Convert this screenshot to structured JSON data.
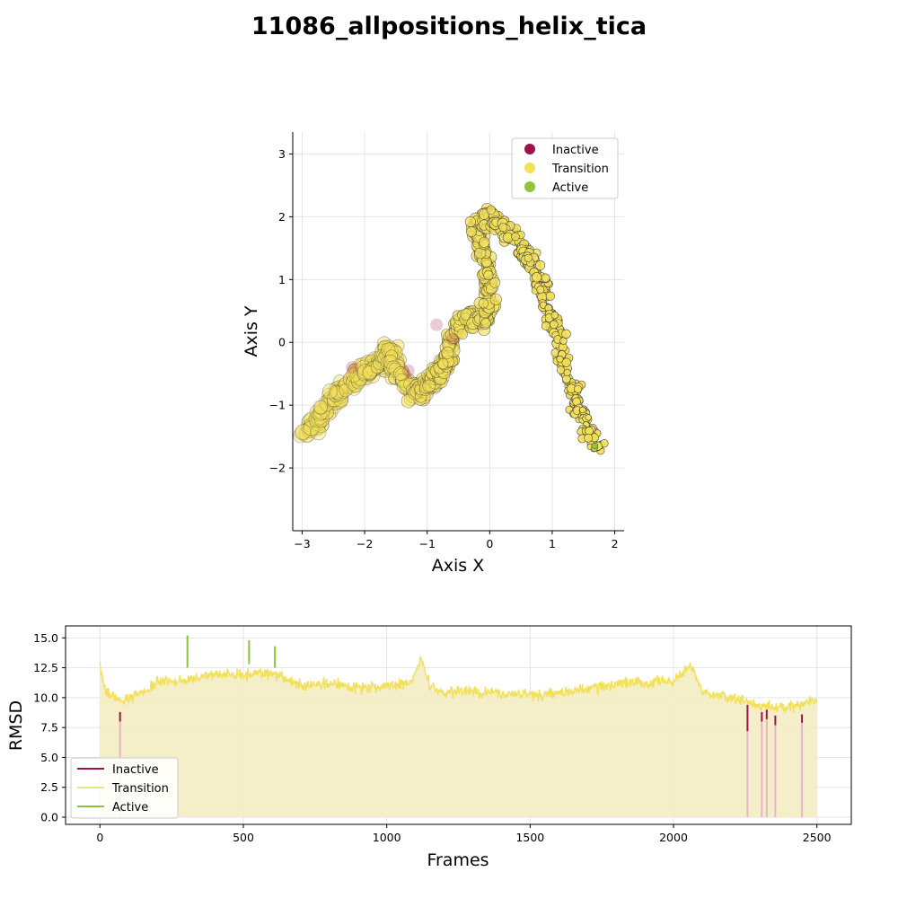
{
  "title": "11086_allpositions_helix_tica",
  "colors": {
    "inactive": "#a01247",
    "transition": "#f3e05a",
    "active": "#8cc43c",
    "transition_fill": "#f3eec5",
    "inactive_fill": "#e8b4c6",
    "grid": "#e5e5e5"
  },
  "chart_data": [
    {
      "type": "scatter",
      "title": "",
      "xlabel": "Axis X",
      "ylabel": "Axis Y",
      "xlim": [
        -3.15,
        2.15
      ],
      "ylim": [
        -3.0,
        3.35
      ],
      "xticks": [
        -3,
        -2,
        -1,
        0,
        1,
        2
      ],
      "yticks": [
        -2,
        -1,
        0,
        1,
        2,
        3
      ],
      "grid": true,
      "legend_position": "top-right",
      "legend": [
        {
          "label": "Inactive",
          "color": "#a01247"
        },
        {
          "label": "Transition",
          "color": "#f3e05a"
        },
        {
          "label": "Active",
          "color": "#8cc43c"
        }
      ],
      "series": [
        {
          "name": "Transition",
          "path_points": [
            [
              -2.95,
              -1.45
            ],
            [
              -2.7,
              -1.2
            ],
            [
              -2.45,
              -0.85
            ],
            [
              -2.2,
              -0.6
            ],
            [
              -1.95,
              -0.45
            ],
            [
              -1.7,
              -0.3
            ],
            [
              -1.6,
              -0.1
            ],
            [
              -1.45,
              -0.55
            ],
            [
              -1.2,
              -0.8
            ],
            [
              -1.0,
              -0.7
            ],
            [
              -0.85,
              -0.5
            ],
            [
              -0.7,
              -0.35
            ],
            [
              -0.6,
              0.1
            ],
            [
              -0.4,
              0.45
            ],
            [
              -0.2,
              0.3
            ],
            [
              0.0,
              0.5
            ],
            [
              -0.05,
              1.0
            ],
            [
              -0.1,
              1.5
            ],
            [
              -0.2,
              1.8
            ],
            [
              0.0,
              2.05
            ],
            [
              0.2,
              1.85
            ],
            [
              0.4,
              1.65
            ],
            [
              0.6,
              1.35
            ],
            [
              0.75,
              1.1
            ],
            [
              0.95,
              0.5
            ],
            [
              1.1,
              0.1
            ],
            [
              1.25,
              -0.5
            ],
            [
              1.4,
              -1.0
            ],
            [
              1.55,
              -1.35
            ],
            [
              1.7,
              -1.75
            ]
          ]
        },
        {
          "name": "Inactive",
          "points": [
            [
              -2.2,
              -0.4
            ],
            [
              -1.3,
              -0.45
            ],
            [
              -0.85,
              0.28
            ],
            [
              -0.6,
              0.05
            ]
          ]
        },
        {
          "name": "Active",
          "points": [
            [
              1.68,
              -1.65
            ]
          ]
        }
      ]
    },
    {
      "type": "area",
      "title": "",
      "xlabel": "Frames",
      "ylabel": "RMSD",
      "xlim": [
        -120,
        2620
      ],
      "ylim": [
        -0.6,
        16
      ],
      "xticks": [
        0,
        500,
        1000,
        1500,
        2000,
        2500
      ],
      "yticks": [
        0.0,
        2.5,
        5.0,
        7.5,
        10.0,
        12.5,
        15.0
      ],
      "grid": true,
      "legend_position": "bottom-left",
      "legend": [
        {
          "label": "Inactive",
          "color": "#a01247"
        },
        {
          "label": "Transition",
          "color": "#e6ea7a"
        },
        {
          "label": "Active",
          "color": "#8cc43c"
        }
      ],
      "x_range": [
        0,
        2500
      ],
      "baseline_profile": [
        [
          0,
          12.5
        ],
        [
          20,
          10.5
        ],
        [
          70,
          9.8
        ],
        [
          100,
          10.0
        ],
        [
          150,
          10.5
        ],
        [
          200,
          11.3
        ],
        [
          300,
          11.5
        ],
        [
          400,
          12.0
        ],
        [
          500,
          11.9
        ],
        [
          600,
          12.0
        ],
        [
          700,
          11.0
        ],
        [
          800,
          11.2
        ],
        [
          900,
          10.9
        ],
        [
          1000,
          11.0
        ],
        [
          1080,
          11.2
        ],
        [
          1120,
          13.2
        ],
        [
          1150,
          11.0
        ],
        [
          1200,
          10.5
        ],
        [
          1300,
          10.5
        ],
        [
          1400,
          10.3
        ],
        [
          1500,
          10.2
        ],
        [
          1600,
          10.5
        ],
        [
          1700,
          10.7
        ],
        [
          1800,
          11.2
        ],
        [
          1900,
          11.3
        ],
        [
          2000,
          11.4
        ],
        [
          2060,
          12.6
        ],
        [
          2100,
          10.5
        ],
        [
          2200,
          10.0
        ],
        [
          2250,
          9.8
        ],
        [
          2300,
          9.3
        ],
        [
          2400,
          9.2
        ],
        [
          2500,
          9.8
        ]
      ],
      "active_spikes": [
        {
          "frame": 305,
          "low": 12.5,
          "high": 15.2
        },
        {
          "frame": 520,
          "low": 12.8,
          "high": 14.8
        },
        {
          "frame": 610,
          "low": 12.5,
          "high": 14.3
        }
      ],
      "inactive_segments": [
        {
          "frame": 70,
          "low": 8.0,
          "high": 8.8
        },
        {
          "frame": 2258,
          "low": 7.2,
          "high": 9.4
        },
        {
          "frame": 2308,
          "low": 8.0,
          "high": 8.8
        },
        {
          "frame": 2325,
          "low": 8.2,
          "high": 9.0
        },
        {
          "frame": 2355,
          "low": 7.7,
          "high": 8.5
        },
        {
          "frame": 2448,
          "low": 7.9,
          "high": 8.6
        }
      ]
    }
  ]
}
